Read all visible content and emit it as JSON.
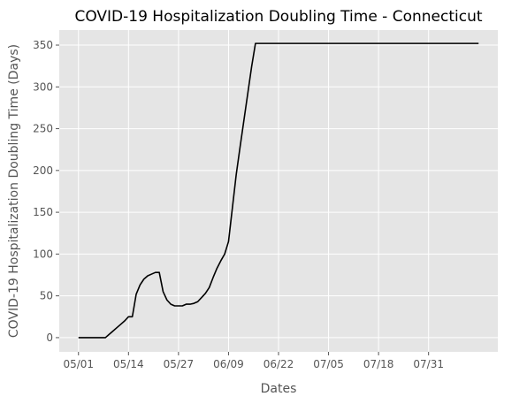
{
  "chart_data": {
    "type": "line",
    "title": "COVID-19 Hospitalization Doubling Time - Connecticut",
    "xlabel": "Dates",
    "ylabel": "COVID-19 Hospitalization Doubling Time (Days)",
    "x_tick_labels": [
      "05/01",
      "05/14",
      "05/27",
      "06/09",
      "06/22",
      "07/05",
      "07/18",
      "07/31"
    ],
    "x_tick_dates": [
      "2020-05-01",
      "2020-05-14",
      "2020-05-27",
      "2020-06-09",
      "2020-06-22",
      "2020-07-05",
      "2020-07-18",
      "2020-07-31"
    ],
    "y_ticks": [
      0,
      50,
      100,
      150,
      200,
      250,
      300,
      350
    ],
    "xlim": [
      "2020-04-26",
      "2020-08-18"
    ],
    "ylim": [
      -17,
      368
    ],
    "grid": true,
    "colors": {
      "background": "#e5e5e5",
      "grid": "#ffffff",
      "line": "#000000"
    },
    "series": [
      {
        "x": [
          "2020-05-01",
          "2020-05-02",
          "2020-05-03",
          "2020-05-04",
          "2020-05-05",
          "2020-05-06",
          "2020-05-07",
          "2020-05-08",
          "2020-05-09",
          "2020-05-10",
          "2020-05-11",
          "2020-05-12",
          "2020-05-13",
          "2020-05-14",
          "2020-05-15",
          "2020-05-16",
          "2020-05-17",
          "2020-05-18",
          "2020-05-19",
          "2020-05-20",
          "2020-05-21",
          "2020-05-22",
          "2020-05-23",
          "2020-05-24",
          "2020-05-25",
          "2020-05-26",
          "2020-05-27",
          "2020-05-28",
          "2020-05-29",
          "2020-05-30",
          "2020-05-31",
          "2020-06-01",
          "2020-06-02",
          "2020-06-03",
          "2020-06-04",
          "2020-06-05",
          "2020-06-06",
          "2020-06-07",
          "2020-06-08",
          "2020-06-09",
          "2020-06-10",
          "2020-06-11",
          "2020-06-12",
          "2020-06-13",
          "2020-06-14",
          "2020-06-15",
          "2020-06-16",
          "2020-06-17",
          "2020-06-18",
          "2020-06-19",
          "2020-08-13"
        ],
        "y": [
          0,
          0,
          0,
          0,
          0,
          0,
          0,
          0,
          4,
          8,
          12,
          16,
          20,
          25,
          25,
          52,
          63,
          70,
          74,
          76,
          78,
          78,
          55,
          45,
          40,
          38,
          38,
          38,
          40,
          40,
          41,
          43,
          48,
          53,
          60,
          72,
          83,
          92,
          100,
          115,
          155,
          195,
          228,
          260,
          292,
          324,
          352,
          352,
          352,
          352,
          352
        ]
      }
    ]
  }
}
